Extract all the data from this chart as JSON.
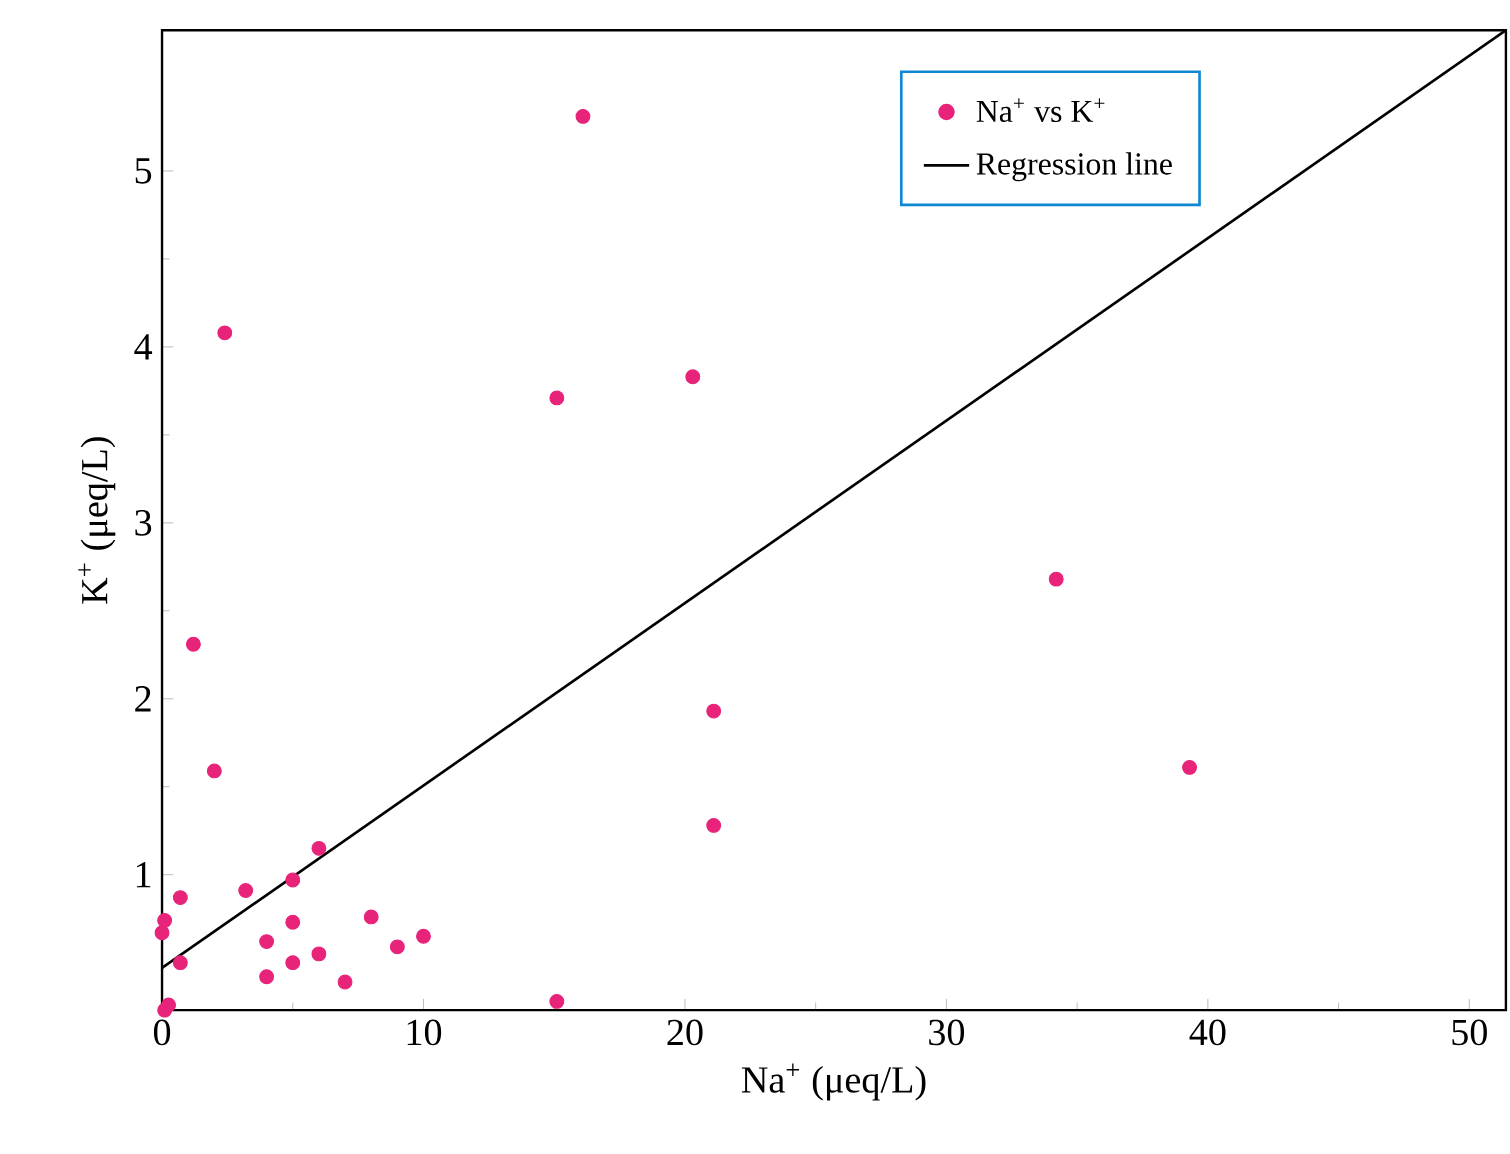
{
  "chart_data": {
    "type": "scatter",
    "xlabel": "Na$^{+}$ (μeq/L)",
    "ylabel": "K$^{+}$ (μeq/L)",
    "xlim": [
      0,
      51.4
    ],
    "ylim": [
      0.23,
      5.8
    ],
    "xticks": [
      0,
      10,
      20,
      30,
      40,
      50
    ],
    "yticks": [
      1,
      2,
      3,
      4,
      5
    ],
    "grid": false,
    "legend": "top right",
    "series": [
      {
        "name": "Na$^{+}$ vs K$^{+}$",
        "color": "#e8237a",
        "marker": "circle",
        "x": [
          0,
          0.1,
          0.1,
          0.25,
          0.7,
          0.7,
          1.2,
          2.0,
          2.4,
          3.2,
          4.0,
          4.0,
          5.0,
          5.0,
          5.0,
          6.0,
          6.0,
          7.0,
          8.0,
          9.0,
          10.0,
          15.1,
          15.1,
          16.1,
          20.3,
          21.1,
          21.1,
          34.2,
          39.3
        ],
        "values": [
          0.67,
          0.74,
          0.23,
          0.26,
          0.87,
          0.5,
          2.31,
          1.59,
          4.08,
          0.91,
          0.62,
          0.42,
          0.97,
          0.73,
          0.5,
          1.15,
          0.55,
          0.39,
          0.76,
          0.59,
          0.65,
          0.28,
          3.71,
          5.31,
          3.83,
          1.93,
          1.28,
          2.68,
          1.61
        ]
      },
      {
        "name": "Regression line",
        "type": "line",
        "color": "#000000",
        "marker": "none",
        "line_style": "solid",
        "x": [
          0,
          51.4
        ],
        "values": [
          0.47,
          5.8
        ]
      }
    ]
  }
}
